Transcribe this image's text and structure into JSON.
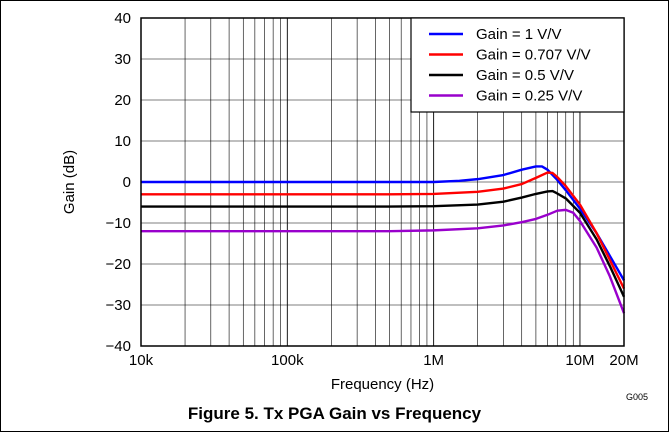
{
  "caption": "Figure 5. Tx PGA Gain vs Frequency",
  "figure_id": "G005",
  "chart_data": {
    "type": "line",
    "xlabel": "Frequency (Hz)",
    "ylabel": "Gain (dB)",
    "x_scale": "log",
    "xlim": [
      10000,
      20000000
    ],
    "ylim": [
      -40,
      40
    ],
    "x_ticks": [
      {
        "value": 10000,
        "label": "10k"
      },
      {
        "value": 100000,
        "label": "100k"
      },
      {
        "value": 1000000,
        "label": "1M"
      },
      {
        "value": 10000000,
        "label": "10M"
      },
      {
        "value": 20000000,
        "label": "20M"
      }
    ],
    "y_ticks": [
      {
        "value": 40,
        "label": "40"
      },
      {
        "value": 30,
        "label": "30"
      },
      {
        "value": 20,
        "label": "20"
      },
      {
        "value": 10,
        "label": "10"
      },
      {
        "value": 0,
        "label": "0"
      },
      {
        "value": -10,
        "label": "−10"
      },
      {
        "value": -20,
        "label": "−20"
      },
      {
        "value": -30,
        "label": "−30"
      },
      {
        "value": -40,
        "label": "−40"
      }
    ],
    "grid": true,
    "legend_position": "top-right",
    "series": [
      {
        "name": "Gain = 1 V/V",
        "color": "#0000ff",
        "points": [
          [
            10000,
            0
          ],
          [
            100000,
            0
          ],
          [
            500000,
            0
          ],
          [
            1000000,
            0
          ],
          [
            1500000,
            0.3
          ],
          [
            2000000,
            0.7
          ],
          [
            3000000,
            1.7
          ],
          [
            4000000,
            3.0
          ],
          [
            5000000,
            3.8
          ],
          [
            5500000,
            3.8
          ],
          [
            6000000,
            3.0
          ],
          [
            7000000,
            0.5
          ],
          [
            8000000,
            -2.0
          ],
          [
            10000000,
            -6.5
          ],
          [
            13000000,
            -12.5
          ],
          [
            16000000,
            -18
          ],
          [
            20000000,
            -24
          ]
        ]
      },
      {
        "name": "Gain = 0.707 V/V",
        "color": "#ff0000",
        "points": [
          [
            10000,
            -3
          ],
          [
            100000,
            -3
          ],
          [
            500000,
            -3
          ],
          [
            1000000,
            -2.9
          ],
          [
            2000000,
            -2.4
          ],
          [
            3000000,
            -1.6
          ],
          [
            4000000,
            -0.5
          ],
          [
            5000000,
            1.0
          ],
          [
            6000000,
            2.3
          ],
          [
            6500000,
            2.2
          ],
          [
            7000000,
            1.2
          ],
          [
            8000000,
            -1.0
          ],
          [
            10000000,
            -5.5
          ],
          [
            13000000,
            -12.5
          ],
          [
            16000000,
            -19
          ],
          [
            20000000,
            -26
          ]
        ]
      },
      {
        "name": "Gain = 0.5 V/V",
        "color": "#000000",
        "points": [
          [
            10000,
            -6
          ],
          [
            100000,
            -6
          ],
          [
            500000,
            -6
          ],
          [
            1000000,
            -5.9
          ],
          [
            2000000,
            -5.5
          ],
          [
            3000000,
            -4.8
          ],
          [
            4000000,
            -3.8
          ],
          [
            5000000,
            -2.9
          ],
          [
            6000000,
            -2.3
          ],
          [
            6500000,
            -2.2
          ],
          [
            7000000,
            -2.8
          ],
          [
            8000000,
            -4.0
          ],
          [
            10000000,
            -7.5
          ],
          [
            13000000,
            -14
          ],
          [
            16000000,
            -20.5
          ],
          [
            20000000,
            -28
          ]
        ]
      },
      {
        "name": "Gain = 0.25 V/V",
        "color": "#9900cc",
        "points": [
          [
            10000,
            -12
          ],
          [
            100000,
            -12
          ],
          [
            500000,
            -12
          ],
          [
            1000000,
            -11.8
          ],
          [
            2000000,
            -11.3
          ],
          [
            3000000,
            -10.6
          ],
          [
            4000000,
            -9.8
          ],
          [
            5000000,
            -9.0
          ],
          [
            6000000,
            -8.0
          ],
          [
            7000000,
            -7.0
          ],
          [
            8000000,
            -6.8
          ],
          [
            9000000,
            -7.5
          ],
          [
            10000000,
            -9.5
          ],
          [
            13000000,
            -16
          ],
          [
            16000000,
            -23
          ],
          [
            20000000,
            -32
          ]
        ]
      }
    ]
  }
}
